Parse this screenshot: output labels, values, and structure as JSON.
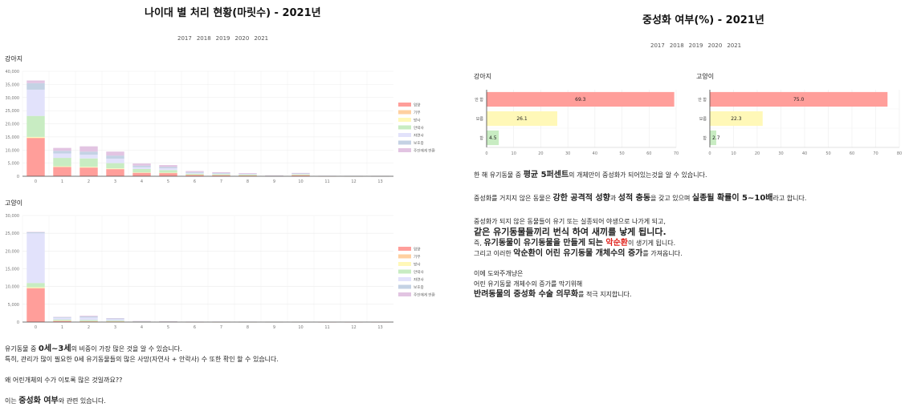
{
  "left_title": "나이대 별 처리 현황(마릿수) - 2021년",
  "right_title": "중성화 여부(%) - 2021년",
  "years": [
    "2017",
    "2018",
    "2019",
    "2020",
    "2021"
  ],
  "left": {
    "dog_label": "강아지",
    "cat_label": "고양이"
  },
  "right": {
    "dog_label": "강아지",
    "cat_label": "고양이"
  },
  "colors": {
    "입양": "#ff9e9a",
    "기부": "#ffd0a0",
    "방사": "#fff8b8",
    "안락사": "#c8ecc2",
    "자연사": "#e2e2fb",
    "보호중": "#c4d2e4",
    "주인에게 반환": "#e2c4e2"
  },
  "chart_data": [
    {
      "type": "bar",
      "stacked": true,
      "title": "",
      "categories": [
        "0",
        "1",
        "2",
        "3",
        "4",
        "5",
        "6",
        "7",
        "8",
        "9",
        "10",
        "11",
        "12",
        "13"
      ],
      "ylim": [
        0,
        40000
      ],
      "yticks": [
        "0",
        "5,000",
        "10,000",
        "15,000",
        "20,000",
        "25,000",
        "30,000",
        "35,000",
        "40,000"
      ],
      "legend_position": "right",
      "series": [
        {
          "name": "입양",
          "values": [
            14500,
            3500,
            3300,
            2700,
            1300,
            1200,
            500,
            400,
            300,
            100,
            400,
            50,
            30,
            20
          ]
        },
        {
          "name": "기부",
          "values": [
            200,
            100,
            100,
            100,
            50,
            50,
            20,
            20,
            20,
            10,
            20,
            5,
            5,
            5
          ]
        },
        {
          "name": "방사",
          "values": [
            300,
            200,
            200,
            200,
            100,
            100,
            50,
            50,
            50,
            20,
            50,
            10,
            5,
            5
          ]
        },
        {
          "name": "안락사",
          "values": [
            8000,
            3200,
            3200,
            2000,
            1300,
            1000,
            400,
            300,
            250,
            60,
            250,
            30,
            15,
            10
          ]
        },
        {
          "name": "자연사",
          "values": [
            10000,
            1700,
            1400,
            1700,
            700,
            700,
            300,
            250,
            200,
            40,
            200,
            20,
            10,
            5
          ]
        },
        {
          "name": "보호중",
          "values": [
            2500,
            1000,
            1200,
            1200,
            600,
            500,
            300,
            200,
            150,
            30,
            150,
            15,
            5,
            5
          ]
        },
        {
          "name": "주인에게 반환",
          "values": [
            1000,
            1100,
            2000,
            1500,
            800,
            700,
            400,
            300,
            250,
            40,
            200,
            20,
            10,
            5
          ]
        }
      ]
    },
    {
      "type": "bar",
      "stacked": true,
      "title": "",
      "categories": [
        "0",
        "1",
        "2",
        "3",
        "4",
        "5",
        "6",
        "7",
        "8",
        "9",
        "10",
        "11",
        "12",
        "13"
      ],
      "ylim": [
        0,
        30000
      ],
      "yticks": [
        "0",
        "5,000",
        "10,000",
        "15,000",
        "20,000",
        "25,000",
        "30,000"
      ],
      "legend_position": "right",
      "series": [
        {
          "name": "입양",
          "values": [
            9500,
            300,
            200,
            150,
            80,
            60,
            30,
            25,
            20,
            10,
            10,
            5,
            5,
            5
          ]
        },
        {
          "name": "기부",
          "values": [
            100,
            30,
            20,
            20,
            10,
            10,
            5,
            5,
            5,
            0,
            0,
            0,
            0,
            0
          ]
        },
        {
          "name": "방사",
          "values": [
            200,
            50,
            50,
            40,
            20,
            20,
            10,
            10,
            5,
            0,
            0,
            0,
            0,
            0
          ]
        },
        {
          "name": "안락사",
          "values": [
            1200,
            300,
            300,
            200,
            60,
            40,
            20,
            20,
            10,
            5,
            5,
            0,
            0,
            0
          ]
        },
        {
          "name": "자연사",
          "values": [
            14000,
            500,
            700,
            400,
            60,
            40,
            20,
            20,
            10,
            5,
            5,
            0,
            0,
            0
          ]
        },
        {
          "name": "보호중",
          "values": [
            300,
            200,
            300,
            200,
            30,
            20,
            10,
            10,
            5,
            0,
            0,
            0,
            0,
            0
          ]
        },
        {
          "name": "주인에게 반환",
          "values": [
            100,
            100,
            200,
            100,
            20,
            10,
            5,
            5,
            5,
            0,
            0,
            0,
            0,
            0
          ]
        }
      ]
    },
    {
      "type": "bar",
      "orientation": "horizontal",
      "title": "",
      "categories": [
        "안 함",
        "모름",
        "함"
      ],
      "values": [
        69.3,
        26.1,
        4.5
      ],
      "colors": [
        "#ff9e9a",
        "#fff8b8",
        "#c8ecc2"
      ],
      "xlim": [
        0,
        70
      ],
      "xticks": [
        "0",
        "10",
        "20",
        "30",
        "40",
        "50",
        "60",
        "70"
      ]
    },
    {
      "type": "bar",
      "orientation": "horizontal",
      "title": "",
      "categories": [
        "안 함",
        "모름",
        "함"
      ],
      "values": [
        75.0,
        22.3,
        2.7
      ],
      "colors": [
        "#ff9e9a",
        "#fff8b8",
        "#c8ecc2"
      ],
      "xlim": [
        0,
        80
      ],
      "xticks": [
        "0",
        "10",
        "20",
        "30",
        "40",
        "50",
        "60",
        "70",
        "80"
      ]
    }
  ],
  "bottom_text": {
    "l1_a": "유기동물 중 ",
    "l1_b": "0세~3세",
    "l1_c": "의 비중이 가장 많은 것을 알 수 있습니다.",
    "l2": "특히, 관리가 많이 필요한 0세 유기동물들의 많은 사망(자연사 + 안락사) 수 또한 확인 할 수 있습니다.",
    "l3": "왜 어린개체의 수가 이토록 많은 것일까요??",
    "l4_a": "이는 ",
    "l4_b": "중성화 여부",
    "l4_c": "와 관련 있습니다."
  },
  "right_text": {
    "p1_a": "한 해 유기동물 중 ",
    "p1_b": "평균 5퍼센트",
    "p1_c": "의 개체만이 중성화가 되어있는것을 알 수 있습니다.",
    "p2_a": "중성화를 거치지 않은 동물은 ",
    "p2_b": "강한 공격적 성향",
    "p2_c": "과 ",
    "p2_d": "성적 충동",
    "p2_e": "을 갖고 있으며 ",
    "p2_f": "실종될 확률이 5~10배",
    "p2_g": "라고 합니다.",
    "p3": "중성화가 되지 않은 동물들이 유기 또는 실종되어 야생으로 나가게 되고,",
    "p4": "같은 유기동물들끼리 번식 하여 새끼를 낳게 됩니다.",
    "p5_a": "즉, ",
    "p5_b": "유기동물이 유기동물을 만들게 되는 ",
    "p5_c": "악순환",
    "p5_d": "이 생기게 됩니다.",
    "p6_a": "그리고 이러한 ",
    "p6_b": "악순환이 어린 유기동물 개체수의 증가",
    "p6_c": "를 가져옵니다.",
    "p7": "이에 도와주개냥은",
    "p8": "어린 유기동물 개체수의 증가를 막기위해",
    "p9_a": "반려동물의 중성화 수술 의무화",
    "p9_b": "를 적극 지지합니다."
  }
}
